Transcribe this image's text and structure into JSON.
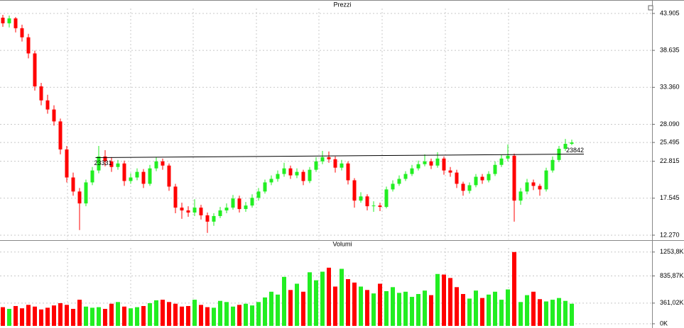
{
  "chart_data": [
    {
      "type": "candlestick",
      "title": "Prezzi",
      "up_color": "#22ee22",
      "down_color": "#ff0000",
      "grid": true,
      "ylim": [
        11.66,
        44.61
      ],
      "yticks": [
        43.905,
        38.635,
        {
          "value": 33.36,
          "label": "33.360"
        },
        {
          "value": 28.09,
          "label": "28.090"
        },
        25.495,
        22.815,
        17.545,
        {
          "value": 12.27,
          "label": "12.270"
        }
      ],
      "open": [
        43.3,
        42.5,
        43.2,
        41.8,
        40.5,
        38.2,
        33.5,
        31.5,
        30.2,
        28.5,
        24.5,
        20.5,
        18.5,
        16.8,
        19.8,
        21.5,
        23.5,
        22.8,
        22.0,
        22.5,
        20.0,
        20.5,
        21.3,
        19.6,
        21.8,
        22.8,
        22.2,
        19.2,
        16.2,
        15.8,
        15.5,
        16.2,
        15.1,
        14.2,
        15.0,
        15.8,
        16.2,
        17.5,
        16.0,
        16.5,
        17.6,
        18.5,
        19.8,
        20.3,
        21.0,
        21.8,
        20.8,
        21.3,
        20.0,
        21.6,
        22.8,
        23.4,
        23.1,
        21.9,
        22.5,
        20.1,
        17.2,
        17.8,
        16.4,
        16.5,
        16.3,
        18.8,
        19.6,
        20.3,
        21.0,
        21.8,
        22.4,
        22.8,
        22.2,
        23.2,
        21.5,
        21.2,
        19.6,
        18.6,
        19.4,
        20.6,
        20.1,
        21.0,
        22.3,
        23.2,
        23.6,
        17.2,
        18.5,
        19.8,
        19.3,
        18.8,
        21.5,
        23.0,
        24.6,
        25.3
      ],
      "high": [
        43.7,
        43.6,
        43.4,
        42.3,
        41.0,
        38.6,
        34.0,
        32.3,
        30.8,
        28.9,
        25.0,
        21.2,
        19.0,
        20.2,
        22.0,
        25.0,
        24.4,
        23.4,
        23.0,
        22.9,
        21.1,
        21.8,
        21.7,
        22.3,
        23.4,
        23.2,
        22.5,
        19.6,
        16.9,
        16.4,
        17.4,
        16.6,
        15.5,
        15.4,
        16.3,
        16.8,
        18.0,
        17.9,
        17.0,
        18.1,
        19.0,
        20.2,
        20.8,
        21.5,
        22.6,
        22.2,
        21.8,
        21.6,
        22.0,
        23.4,
        24.3,
        24.2,
        23.5,
        23.0,
        22.8,
        20.4,
        18.4,
        18.1,
        17.1,
        16.9,
        19.2,
        20.1,
        20.8,
        21.4,
        22.3,
        22.9,
        23.8,
        23.2,
        24.1,
        23.5,
        22.0,
        21.6,
        19.9,
        19.8,
        21.0,
        21.0,
        21.4,
        22.8,
        23.7,
        25.2,
        23.9,
        19.0,
        20.3,
        20.2,
        19.6,
        21.9,
        23.5,
        25.0,
        26.0,
        25.9
      ],
      "low": [
        42.0,
        41.9,
        41.2,
        39.9,
        37.5,
        32.9,
        30.8,
        29.6,
        27.9,
        23.8,
        19.8,
        17.9,
        13.0,
        16.4,
        19.4,
        21.1,
        22.1,
        21.3,
        21.6,
        19.3,
        19.6,
        20.1,
        19.0,
        19.3,
        21.4,
        21.6,
        18.6,
        15.4,
        14.6,
        14.9,
        15.0,
        14.5,
        12.6,
        13.6,
        14.7,
        15.4,
        15.9,
        15.5,
        15.6,
        16.2,
        17.2,
        18.2,
        19.4,
        19.9,
        20.6,
        20.3,
        20.4,
        19.4,
        19.7,
        21.3,
        22.4,
        22.6,
        21.2,
        21.5,
        19.5,
        16.2,
        16.9,
        15.8,
        15.6,
        15.7,
        16.1,
        18.5,
        19.3,
        20.0,
        20.7,
        21.5,
        22.1,
        21.7,
        21.9,
        20.9,
        20.6,
        19.0,
        17.9,
        18.2,
        19.1,
        19.6,
        19.8,
        20.7,
        22.0,
        22.8,
        14.2,
        16.6,
        18.1,
        18.7,
        17.9,
        18.5,
        21.2,
        22.7,
        24.3,
        25.1
      ],
      "close": [
        42.5,
        43.2,
        41.8,
        40.5,
        38.2,
        33.5,
        31.5,
        30.2,
        28.5,
        24.5,
        20.5,
        18.5,
        16.8,
        19.8,
        21.5,
        23.5,
        22.8,
        22.0,
        22.5,
        20.0,
        20.5,
        21.3,
        19.6,
        21.8,
        22.8,
        22.2,
        19.2,
        16.2,
        15.8,
        15.5,
        16.2,
        15.1,
        14.2,
        15.0,
        15.8,
        16.2,
        17.5,
        16.0,
        16.5,
        17.6,
        18.5,
        19.8,
        20.3,
        21.0,
        21.8,
        20.8,
        21.3,
        20.0,
        21.6,
        22.8,
        23.4,
        23.1,
        21.9,
        22.5,
        20.1,
        17.2,
        17.8,
        16.4,
        16.5,
        16.3,
        18.8,
        19.6,
        20.3,
        21.0,
        21.8,
        22.4,
        22.8,
        22.2,
        23.2,
        21.5,
        21.2,
        19.6,
        18.6,
        19.4,
        20.6,
        20.1,
        21.0,
        22.3,
        23.2,
        23.6,
        17.2,
        18.5,
        19.8,
        19.3,
        18.8,
        21.5,
        23.0,
        24.6,
        25.3,
        25.5
      ],
      "trendline": {
        "start": 23.331,
        "end": 23.842,
        "start_label": "23331",
        "end_label": "23842"
      }
    },
    {
      "type": "bar",
      "title": "Volumi",
      "grid": true,
      "ylim": [
        0,
        1350
      ],
      "yticks": [
        {
          "value": 1253.8,
          "label": "1253,8K"
        },
        {
          "value": 835.87,
          "label": "835,87K"
        },
        {
          "value": 361.02,
          "label": "361,02K"
        },
        {
          "value": 0,
          "label": "0K"
        }
      ],
      "values": [
        290,
        260,
        310,
        270,
        330,
        300,
        250,
        280,
        320,
        360,
        330,
        260,
        420,
        300,
        280,
        290,
        260,
        350,
        380,
        300,
        270,
        290,
        310,
        360,
        410,
        420,
        380,
        350,
        300,
        310,
        420,
        330,
        290,
        280,
        400,
        380,
        300,
        330,
        350,
        320,
        380,
        460,
        560,
        510,
        820,
        590,
        700,
        560,
        900,
        760,
        910,
        980,
        650,
        960,
        780,
        720,
        650,
        590,
        530,
        700,
        570,
        640,
        540,
        560,
        470,
        520,
        580,
        500,
        870,
        860,
        800,
        640,
        520,
        440,
        580,
        450,
        510,
        560,
        420,
        600,
        1253.8,
        380,
        500,
        560,
        430,
        390,
        420,
        450,
        400,
        350
      ]
    }
  ]
}
